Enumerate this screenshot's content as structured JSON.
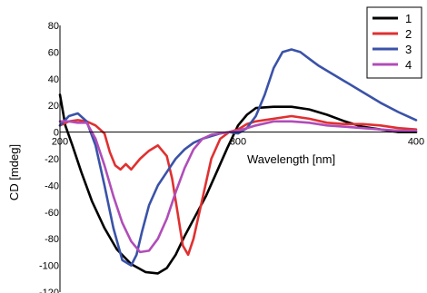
{
  "chart_data": {
    "type": "line",
    "xlabel": "Wavelength [nm]",
    "ylabel": "CD [mdeg]",
    "xlim": [
      200,
      400
    ],
    "ylim": [
      -120,
      80
    ],
    "x_ticks": [
      200,
      300,
      400
    ],
    "y_ticks": [
      80,
      60,
      40,
      20,
      0,
      -20,
      -40,
      -60,
      -80,
      -100,
      -120
    ],
    "legend_position": "top-right",
    "series": [
      {
        "name": "1",
        "color": "#000000",
        "x": [
          200,
          203,
          207,
          212,
          218,
          225,
          232,
          240,
          248,
          255,
          260,
          265,
          270,
          276,
          282,
          288,
          294,
          300,
          305,
          310,
          320,
          330,
          340,
          350,
          360,
          370,
          380,
          390,
          400
        ],
        "y": [
          28,
          5,
          -10,
          -30,
          -52,
          -72,
          -88,
          -99,
          -105,
          -106,
          -102,
          -92,
          -78,
          -63,
          -48,
          -30,
          -12,
          5,
          13,
          18,
          19,
          19,
          17,
          13,
          8,
          4,
          2,
          0,
          0
        ]
      },
      {
        "name": "2",
        "color": "#e03030",
        "x": [
          200,
          205,
          210,
          215,
          220,
          225,
          228,
          231,
          234,
          237,
          240,
          245,
          250,
          255,
          260,
          263,
          266,
          269,
          272,
          275,
          280,
          285,
          290,
          295,
          300,
          305,
          310,
          320,
          330,
          340,
          350,
          360,
          370,
          380,
          390,
          400
        ],
        "y": [
          5,
          8,
          9,
          8,
          5,
          -1,
          -15,
          -25,
          -28,
          -24,
          -28,
          -20,
          -14,
          -10,
          -18,
          -35,
          -60,
          -85,
          -92,
          -80,
          -50,
          -20,
          -5,
          0,
          2,
          6,
          8,
          10,
          12,
          10,
          7,
          6,
          6,
          5,
          3,
          2
        ]
      },
      {
        "name": "3",
        "color": "#3a52a8",
        "x": [
          200,
          205,
          210,
          215,
          220,
          225,
          230,
          235,
          240,
          243,
          246,
          250,
          255,
          260,
          265,
          270,
          275,
          280,
          285,
          290,
          295,
          300,
          305,
          310,
          315,
          320,
          325,
          330,
          335,
          340,
          345,
          350,
          355,
          360,
          370,
          380,
          390,
          400
        ],
        "y": [
          5,
          12,
          14,
          8,
          -10,
          -40,
          -72,
          -96,
          -100,
          -92,
          -75,
          -55,
          -40,
          -30,
          -20,
          -13,
          -8,
          -5,
          -3,
          -1,
          0,
          -1,
          3,
          12,
          28,
          48,
          60,
          62,
          60,
          55,
          50,
          46,
          42,
          38,
          30,
          22,
          15,
          9
        ]
      },
      {
        "name": "4",
        "color": "#b04db8",
        "x": [
          200,
          205,
          210,
          215,
          220,
          225,
          230,
          235,
          240,
          245,
          250,
          255,
          260,
          265,
          270,
          275,
          280,
          285,
          290,
          295,
          300,
          305,
          310,
          320,
          330,
          340,
          350,
          360,
          370,
          380,
          390,
          400
        ],
        "y": [
          8,
          8,
          7,
          7,
          -5,
          -25,
          -48,
          -68,
          -82,
          -90,
          -89,
          -80,
          -65,
          -45,
          -27,
          -13,
          -5,
          -2,
          -1,
          0,
          1,
          3,
          5,
          8,
          8,
          7,
          5,
          4,
          3,
          2,
          1,
          1
        ]
      }
    ]
  }
}
